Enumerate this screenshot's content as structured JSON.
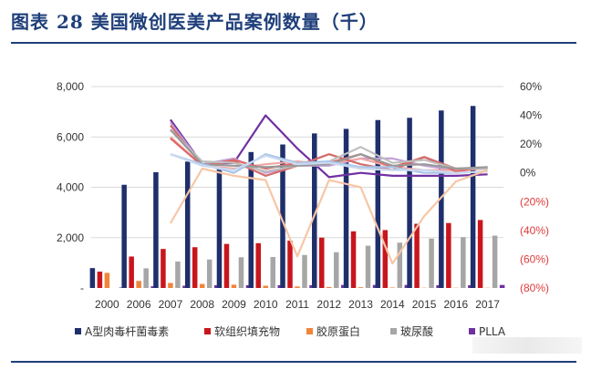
{
  "page": {
    "title": "图表 28 美国微创医美产品案例数量（千）"
  },
  "colors": {
    "title": "#1f3f7a",
    "grid": "#d9d9d9",
    "right_axis_negative": "#e03c3c",
    "right_axis_positive": "#333333"
  },
  "chart_data": {
    "type": "bar",
    "title": "",
    "xlabel": "",
    "ylabel": "",
    "categories": [
      "2000",
      "2006",
      "2007",
      "2008",
      "2009",
      "2010",
      "2011",
      "2012",
      "2013",
      "2014",
      "2015",
      "2016",
      "2017"
    ],
    "ylim": [
      0,
      8000
    ],
    "y_ticks": [
      "-",
      "2,000",
      "4,000",
      "6,000",
      "8,000"
    ],
    "y_tick_values": [
      0,
      2000,
      4000,
      6000,
      8000
    ],
    "y2lim": [
      -80,
      60
    ],
    "y2_ticks": [
      "(80%)",
      "(60%)",
      "(40%)",
      "(20%)",
      "0%",
      "20%",
      "40%",
      "60%"
    ],
    "y2_tick_values": [
      -80,
      -60,
      -40,
      -20,
      0,
      20,
      40,
      60
    ],
    "grid": true,
    "legend_position": "bottom",
    "series": [
      {
        "name": "A型肉毒杆菌毒素",
        "color": "#1f2f6b",
        "values": [
          790,
          4100,
          4600,
          5020,
          4780,
          5400,
          5700,
          6140,
          6320,
          6670,
          6760,
          7050,
          7230
        ]
      },
      {
        "name": "软组织填充物",
        "color": "#c8161d",
        "values": [
          650,
          1250,
          1550,
          1620,
          1750,
          1780,
          1880,
          2000,
          2250,
          2300,
          2550,
          2580,
          2700
        ]
      },
      {
        "name": "胶原蛋白",
        "color": "#f0853a",
        "values": [
          600,
          280,
          200,
          160,
          130,
          90,
          60,
          40,
          30,
          20,
          10,
          10,
          10
        ]
      },
      {
        "name": "玻尿酸",
        "color": "#a6a6a6",
        "values": [
          0,
          780,
          1050,
          1130,
          1220,
          1230,
          1310,
          1420,
          1680,
          1800,
          1960,
          2020,
          2080
        ]
      },
      {
        "name": "PLLA",
        "color": "#7030a0",
        "values": [
          20,
          70,
          90,
          110,
          110,
          110,
          110,
          120,
          120,
          120,
          110,
          110,
          120
        ]
      }
    ],
    "growth_lines": [
      {
        "name": "",
        "color": "#7030a0",
        "values": [
          null,
          null,
          37,
          6,
          7,
          40,
          17,
          -3,
          0,
          -2,
          -2,
          -2,
          -1
        ]
      },
      {
        "name": "",
        "color": "#c0a0d8",
        "values": [
          null,
          null,
          35,
          6,
          10,
          0,
          5,
          5,
          10,
          10,
          5,
          2,
          4
        ]
      },
      {
        "name": "",
        "color": "#f2a7a4",
        "values": [
          null,
          null,
          25,
          5,
          3,
          6,
          8,
          6,
          10,
          4,
          2,
          2,
          3
        ]
      },
      {
        "name": "",
        "color": "#e06666",
        "values": [
          null,
          null,
          24,
          5,
          9,
          3,
          7,
          7,
          13,
          4,
          11,
          1,
          4
        ]
      },
      {
        "name": "",
        "color": "#d46a6a",
        "values": [
          null,
          null,
          33,
          5,
          8,
          -2,
          5,
          13,
          6,
          2,
          11,
          3,
          3
        ]
      },
      {
        "name": "",
        "color": "#bfbfbf",
        "values": [
          null,
          null,
          30,
          8,
          7,
          1,
          5,
          8,
          18,
          7,
          9,
          3,
          3
        ]
      },
      {
        "name": "",
        "color": "#999999",
        "values": [
          null,
          null,
          30,
          6,
          5,
          4,
          5,
          6,
          13,
          5,
          6,
          3,
          4
        ]
      },
      {
        "name": "",
        "color": "#a9c4e8",
        "values": [
          null,
          null,
          13,
          6,
          0,
          13,
          7,
          8,
          4,
          4,
          0,
          0,
          1
        ]
      },
      {
        "name": "",
        "color": "#c9d9ef",
        "values": [
          null,
          null,
          13,
          5,
          2,
          12,
          6,
          7,
          3,
          2,
          2,
          0,
          1
        ]
      },
      {
        "name": "",
        "color": "#f7c6a6",
        "values": [
          null,
          null,
          -35,
          3,
          -2,
          -5,
          -58,
          -5,
          -10,
          -63,
          -30,
          -6,
          2
        ]
      }
    ]
  }
}
